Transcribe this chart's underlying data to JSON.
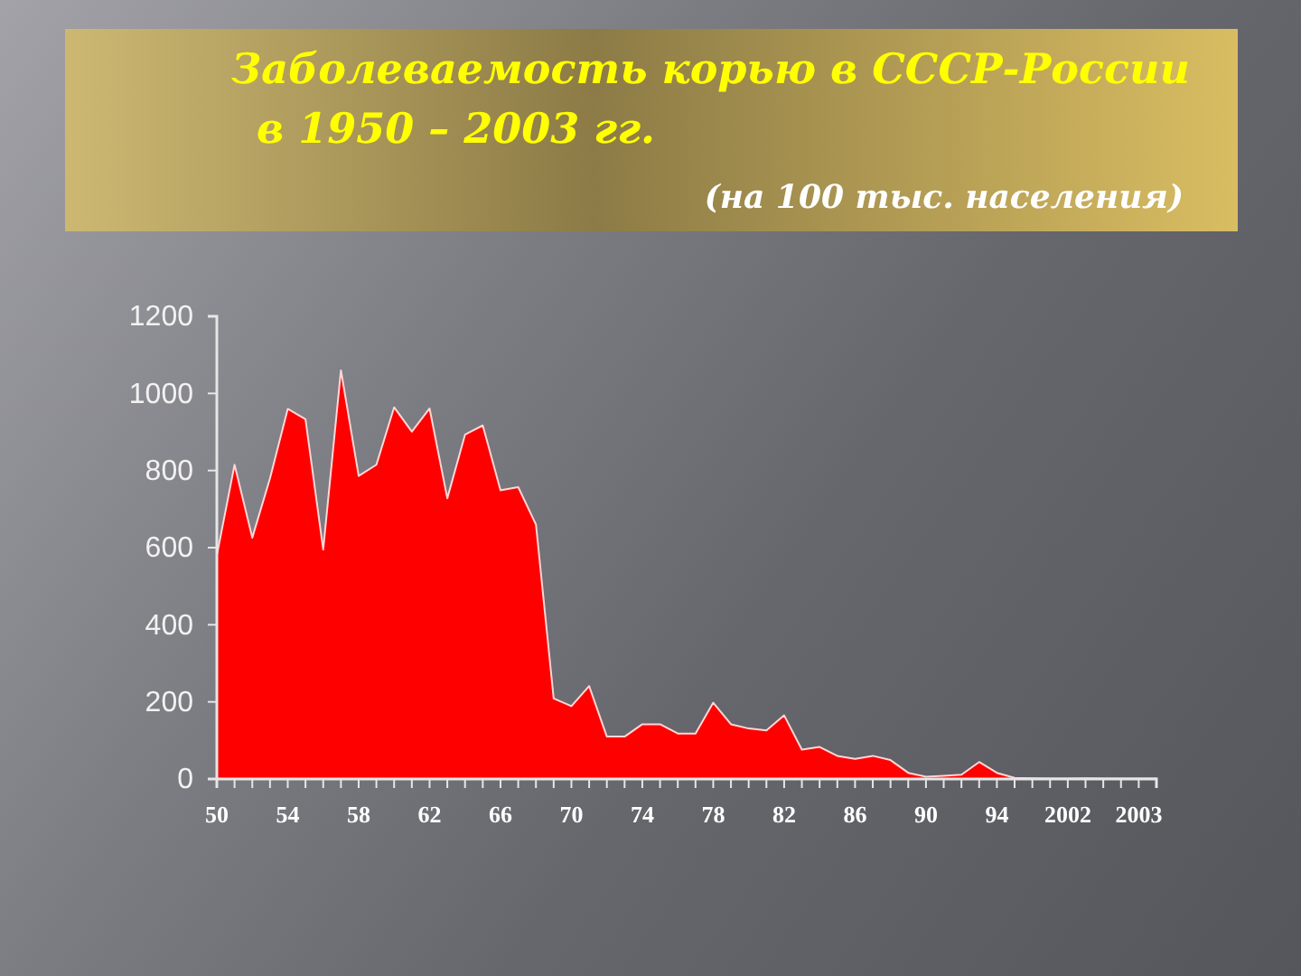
{
  "chart_data": {
    "type": "area",
    "title": "Заболеваемость корью в СССР-России\nв 1950 – 2003 гг.",
    "subtitle": "(на 100 тыс. населения)",
    "categories": [
      "50",
      null,
      null,
      null,
      "54",
      null,
      null,
      null,
      "58",
      null,
      null,
      null,
      "62",
      null,
      null,
      null,
      "66",
      null,
      null,
      null,
      "70",
      null,
      null,
      null,
      "74",
      null,
      null,
      null,
      "78",
      null,
      null,
      null,
      "82",
      null,
      null,
      null,
      "86",
      null,
      null,
      null,
      "90",
      null,
      null,
      null,
      "94",
      null,
      null,
      null,
      "2002",
      null,
      null,
      null,
      "2003",
      null
    ],
    "values": [
      580,
      815,
      626,
      780,
      960,
      933,
      595,
      1060,
      786,
      815,
      964,
      901,
      961,
      728,
      893,
      917,
      749,
      757,
      660,
      209,
      189,
      241,
      110,
      110,
      142,
      142,
      118,
      118,
      198,
      142,
      131,
      126,
      165,
      76,
      83,
      60,
      52,
      60,
      49,
      16,
      6,
      8,
      11,
      44,
      16,
      3,
      2,
      1,
      1,
      2,
      1,
      1,
      1,
      1
    ],
    "color": "#ff0000",
    "ylim": [
      0,
      1200
    ],
    "yticks": [
      0,
      200,
      400,
      600,
      800,
      1000,
      1200
    ]
  }
}
